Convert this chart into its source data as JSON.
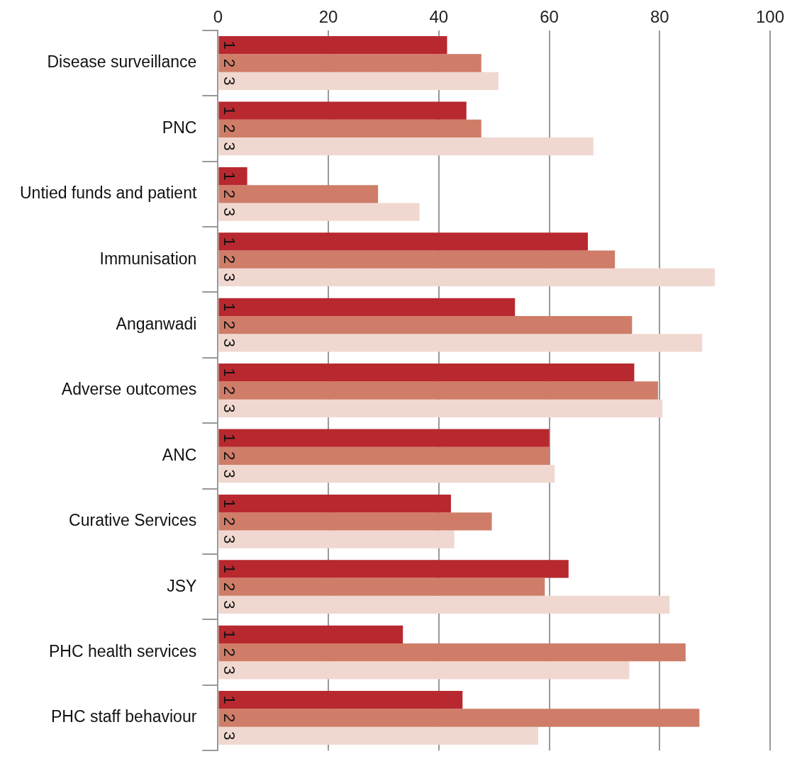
{
  "chart_data": {
    "type": "bar",
    "orientation": "horizontal",
    "categories": [
      "Disease surveillance",
      "PNC",
      "Untied funds and patient",
      "Immunisation",
      "Anganwadi",
      "Adverse outcomes",
      "ANC",
      "Curative Services",
      "JSY",
      "PHC health services",
      "PHC staff behaviour"
    ],
    "series": [
      {
        "name": "1",
        "color": "#b8282f",
        "values": [
          41.5,
          45,
          5.3,
          67,
          53.8,
          75.4,
          60,
          42.2,
          63.5,
          33.5,
          44.3
        ]
      },
      {
        "name": "2",
        "color": "#cf7d68",
        "values": [
          47.7,
          47.7,
          29,
          71.9,
          75,
          79.7,
          60,
          49.6,
          59.2,
          84.7,
          87.2
        ]
      },
      {
        "name": "3",
        "color": "#f0d8d0",
        "values": [
          50.8,
          68,
          36.5,
          90,
          87.7,
          80.5,
          61,
          42.8,
          81.8,
          74.5,
          58
        ]
      }
    ],
    "xlim": [
      0,
      100
    ],
    "xticks": [
      0,
      20,
      40,
      60,
      80,
      100
    ],
    "grid": "x",
    "legend": false
  }
}
